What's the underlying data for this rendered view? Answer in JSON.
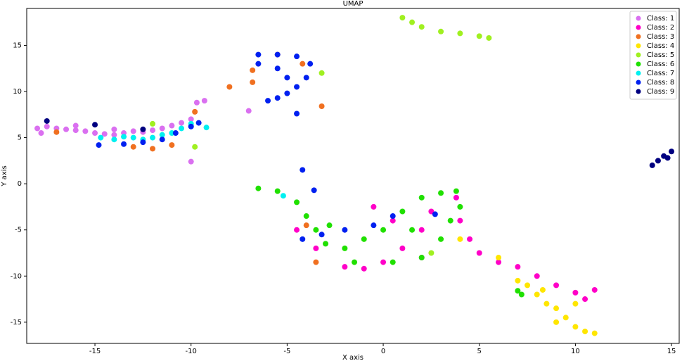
{
  "chart_data": {
    "type": "scatter",
    "title": "UMAP",
    "x_label": "X axis",
    "y_label": "Y axis",
    "xlim": [
      -18.55,
      15.4
    ],
    "ylim": [
      -17.3,
      19.0
    ],
    "xticks": [
      -15,
      -10,
      -5,
      0,
      5,
      10,
      15
    ],
    "yticks": [
      -15,
      -10,
      -5,
      0,
      5,
      10,
      15
    ],
    "legend": "upper right",
    "series": [
      {
        "name": "Class: 1",
        "color": "#da70f0",
        "x": [
          -18,
          -17.5,
          -17,
          -16.5,
          -16,
          -15.5,
          -15,
          -14.5,
          -14,
          -13.5,
          -13,
          -12.5,
          -12,
          -11.5,
          -11,
          -10.5,
          -10,
          -9.7,
          -9.3,
          -10,
          -7,
          -17.8,
          -16,
          -14
        ],
        "y": [
          6,
          6.2,
          6,
          5.9,
          5.8,
          5.7,
          5.5,
          5.4,
          5.3,
          5.5,
          5.7,
          5.6,
          5.8,
          6,
          6.3,
          6.6,
          7,
          8.8,
          9,
          2.4,
          7.9,
          5.5,
          6.3,
          5.9
        ]
      },
      {
        "name": "Class: 2",
        "color": "#ff00c8",
        "x": [
          -4.5,
          -3.5,
          -2,
          -1,
          0,
          1,
          2,
          2.5,
          3.8,
          4,
          4.5,
          5,
          6,
          7,
          8,
          9,
          10,
          11,
          10.5,
          2,
          0.5,
          -0.5
        ],
        "y": [
          -5,
          -7,
          -9,
          -9.2,
          -8.5,
          -7,
          -5,
          -3,
          -1.5,
          -4,
          -6,
          -7.5,
          -8.5,
          -9,
          -10,
          -11,
          -11.8,
          -11.5,
          -12.5,
          -8,
          -4,
          -2.5
        ]
      },
      {
        "name": "Class: 3",
        "color": "#f07020",
        "x": [
          -17,
          -13,
          -12,
          -11,
          -9.8,
          -8,
          -5.5,
          -4.2,
          -6.8,
          -6.8,
          -3.2,
          -4,
          -3.5
        ],
        "y": [
          5.6,
          4,
          3.8,
          4.2,
          7.8,
          10.5,
          14,
          13,
          12.3,
          11,
          8.4,
          -4.5,
          -8.5
        ]
      },
      {
        "name": "Class: 4",
        "color": "#ffe600",
        "x": [
          7,
          7.5,
          8,
          8.5,
          9,
          9.5,
          10,
          10.5,
          11,
          9,
          8.3,
          10,
          4,
          6
        ],
        "y": [
          -10.5,
          -11,
          -12,
          -13,
          -13.5,
          -14.5,
          -15.5,
          -16,
          -16.2,
          -15,
          -11.5,
          -13,
          -6,
          -8
        ]
      },
      {
        "name": "Class: 5",
        "color": "#a0f020",
        "x": [
          1,
          1.5,
          2,
          3,
          4,
          5,
          5.5,
          -3.2,
          -9.8,
          -12,
          2.5
        ],
        "y": [
          18,
          17.5,
          17,
          16.5,
          16.3,
          16,
          15.8,
          12,
          4,
          6.5,
          -7.5
        ]
      },
      {
        "name": "Class: 6",
        "color": "#20e000",
        "x": [
          -6.5,
          -5.5,
          -4.5,
          -4,
          -3.5,
          -3,
          -2,
          -1,
          0,
          1,
          2,
          3,
          3.8,
          3.5,
          3,
          2,
          0.5,
          -1.5,
          -2.8,
          1.5,
          7,
          7.2,
          4
        ],
        "y": [
          -0.5,
          -0.8,
          -2,
          -3.5,
          -5,
          -6.5,
          -7,
          -6,
          -5,
          -3,
          -1.5,
          -1,
          -0.8,
          -4,
          -6,
          -8,
          -8.5,
          -8.5,
          -4.5,
          -5,
          -11.6,
          -12,
          -2.5
        ]
      },
      {
        "name": "Class: 7",
        "color": "#00f0f0",
        "x": [
          -14.7,
          -14,
          -13.5,
          -13,
          -12.5,
          -12,
          -11.5,
          -11,
          -10.5,
          -10,
          -9.2,
          -5.2
        ],
        "y": [
          5,
          4.8,
          5.1,
          5,
          4.8,
          5,
          5.3,
          5.5,
          6,
          6.5,
          6.1,
          -1.3
        ]
      },
      {
        "name": "Class: 8",
        "color": "#0020f0",
        "x": [
          -6.5,
          -5.5,
          -4.5,
          -3.8,
          -4,
          -4.5,
          -5,
          -5.5,
          -6,
          -6.5,
          -5.5,
          -5,
          -14.8,
          -13.5,
          -12.5,
          -11.5,
          -10.8,
          -10,
          -9.6,
          -4.5,
          -4.2,
          -3.6,
          -4.2,
          -3.2,
          -2,
          -0.5,
          0.5,
          2.7
        ],
        "y": [
          14,
          14,
          13.8,
          13,
          11.5,
          10.5,
          9.8,
          9.3,
          9,
          13,
          12.5,
          11.5,
          4.2,
          4.3,
          4.5,
          4.8,
          5.5,
          6.2,
          6.6,
          7.6,
          1.5,
          -0.7,
          -6,
          -5.5,
          -5,
          -4.5,
          -3.5,
          -3.3
        ]
      },
      {
        "name": "Class: 9",
        "color": "#000080",
        "x": [
          -17.5,
          -15,
          -12.5,
          14,
          14.3,
          14.6,
          15,
          14.8
        ],
        "y": [
          6.8,
          6.4,
          5.9,
          2,
          2.5,
          3,
          3.5,
          2.8
        ]
      }
    ]
  }
}
